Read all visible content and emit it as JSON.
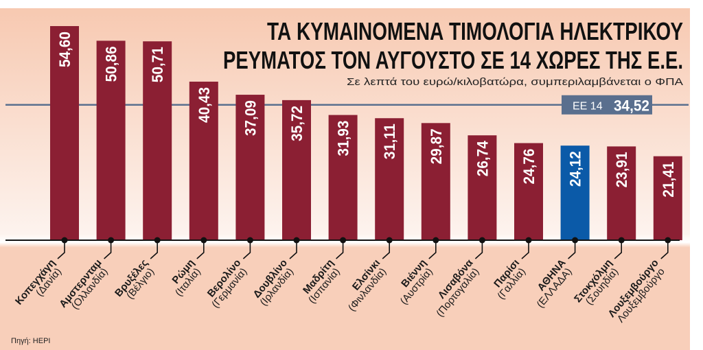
{
  "chart_data": {
    "type": "bar",
    "title": "ΤΑ ΚΥΜΑΙΝΟΜΕΝΑ ΤΙΜΟΛΟΓΙΑ ΗΛΕΚΤΡΙΚΟΥ ΡΕΥΜΑΤΟΣ ΤΟΝ ΑΥΓΟΥΣΤΟ ΣΕ 14 ΧΩΡΕΣ ΤΗΣ Ε.Ε.",
    "title_lines": [
      "ΤΑ ΚΥΜΑΙΝΟΜΕΝΑ ΤΙΜΟΛΟΓΙΑ ΗΛΕΚΤΡΙΚΟΥ",
      "ΡΕΥΜΑΤΟΣ ΤΟΝ ΑΥΓΟΥΣΤΟ ΣΕ 14 ΧΩΡΕΣ ΤΗΣ Ε.Ε."
    ],
    "subtitle": "Σε λεπτά του ευρώ/κιλοβατώρα, συμπεριλαμβάνεται ο ΦΠΑ",
    "source": "Πηγή: HEPI",
    "ylim": [
      0,
      60
    ],
    "grid": false,
    "categories": [
      {
        "city": "Κοπεγχάγη",
        "country": "(Δανία)"
      },
      {
        "city": "Αμστερνταμ",
        "country": "(Ολλανδία)"
      },
      {
        "city": "Βρυξέλες",
        "country": "(Βέλγιο)"
      },
      {
        "city": "Ρώμη",
        "country": "(Ιταλία)"
      },
      {
        "city": "Βερολίνο",
        "country": "(Γερμανία)"
      },
      {
        "city": "Δουβλίνο",
        "country": "(Ιρλανδία)"
      },
      {
        "city": "Μαδρίτη",
        "country": "(Ισπανία)"
      },
      {
        "city": "Ελσίνκι",
        "country": "(Φινλανδία)"
      },
      {
        "city": "Βιέννη",
        "country": "(Αυστρία)"
      },
      {
        "city": "Λισαβόνα",
        "country": "(Πορτογαλία)"
      },
      {
        "city": "Παρίσι",
        "country": "(Γαλλία)"
      },
      {
        "city": "ΑΘΗΝΑ",
        "country": "(ΕΛΛΑΔΑ)"
      },
      {
        "city": "Στοκχόλμη",
        "country": "(Σουηδία)"
      },
      {
        "city": "Λουξεμβούργο",
        "country": "Λουξεμβούργο"
      }
    ],
    "values": [
      54.6,
      50.86,
      50.71,
      40.43,
      37.09,
      35.72,
      31.93,
      31.11,
      29.87,
      26.74,
      24.76,
      24.12,
      23.91,
      21.41
    ],
    "value_labels": [
      "54,60",
      "50,86",
      "50,71",
      "40,43",
      "37,09",
      "35,72",
      "31,93",
      "31,11",
      "29,87",
      "26,74",
      "24,76",
      "24,12",
      "23,91",
      "21,41"
    ],
    "highlight_index": 11,
    "reference_line": {
      "label": "ΕΕ 14",
      "value": 34.52,
      "value_label": "34,52"
    },
    "colors": {
      "bar": "#8b1f33",
      "highlight": "#0b5aa8",
      "reference": "#5a6f8e",
      "background": "#f8cdb6"
    }
  }
}
